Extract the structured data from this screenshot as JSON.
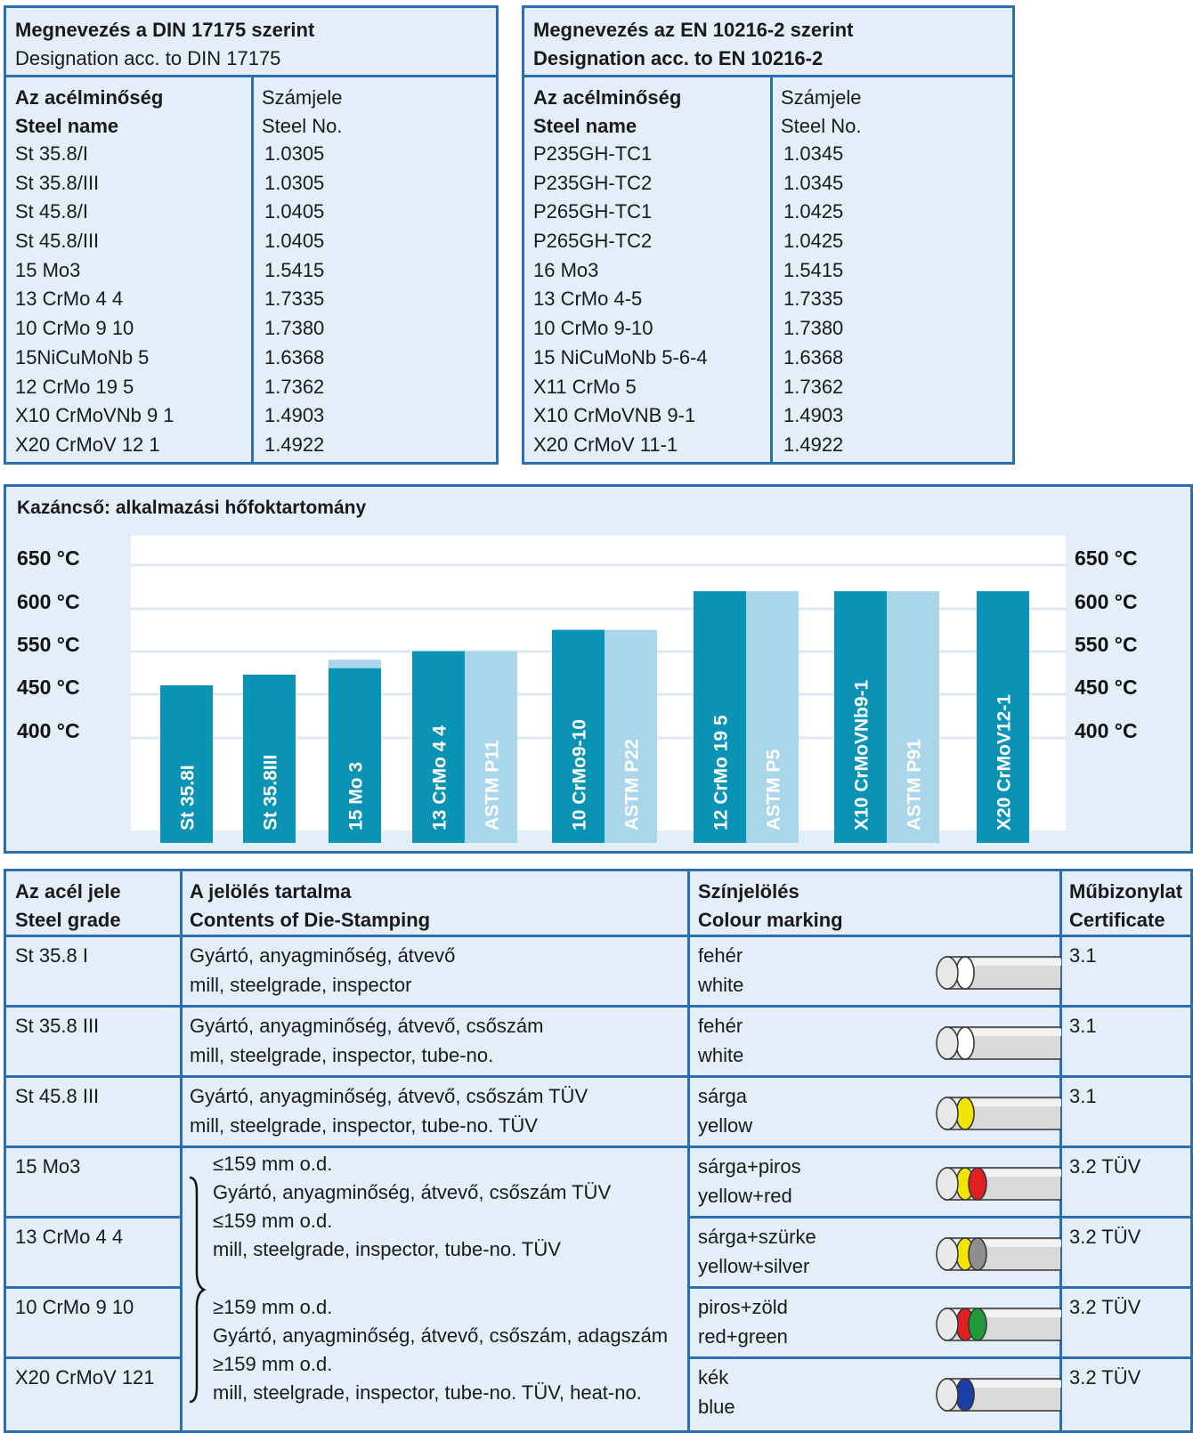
{
  "din_table": {
    "header_line1": "Megnevezés a DIN 17175 szerint",
    "header_line2": "Designation acc. to DIN 17175",
    "col1_head1": "Az acélminőség",
    "col1_head2": "Steel name",
    "col2_head1": "Számjele",
    "col2_head2": "Steel No.",
    "rows": [
      {
        "name": "St 35.8/I",
        "no": "1.0305"
      },
      {
        "name": "St 35.8/III",
        "no": "1.0305"
      },
      {
        "name": "St 45.8/I",
        "no": "1.0405"
      },
      {
        "name": "St 45.8/III",
        "no": "1.0405"
      },
      {
        "name": "15 Mo3",
        "no": "1.5415"
      },
      {
        "name": "13 CrMo 4 4",
        "no": "1.7335"
      },
      {
        "name": "10 CrMo 9 10",
        "no": "1.7380"
      },
      {
        "name": "15NiCuMoNb 5",
        "no": "1.6368"
      },
      {
        "name": "12 CrMo 19 5",
        "no": "1.7362"
      },
      {
        "name": "X10  CrMoVNb 9 1",
        "no": "1.4903"
      },
      {
        "name": "X20 CrMoV 12 1",
        "no": "1.4922"
      }
    ]
  },
  "en_table": {
    "header_line1": "Megnevezés az EN 10216-2 szerint",
    "header_line2": "Designation acc. to EN 10216-2",
    "col1_head1": "Az acélminőség",
    "col1_head2": "Steel name",
    "col2_head1": "Számjele",
    "col2_head2": "Steel No.",
    "rows": [
      {
        "name": "P235GH-TC1",
        "no": "1.0345"
      },
      {
        "name": "P235GH-TC2",
        "no": "1.0345"
      },
      {
        "name": "P265GH-TC1",
        "no": "1.0425"
      },
      {
        "name": "P265GH-TC2",
        "no": "1.0425"
      },
      {
        "name": "16 Mo3",
        "no": "1.5415"
      },
      {
        "name": "13 CrMo 4-5",
        "no": "1.7335"
      },
      {
        "name": "10 CrMo 9-10",
        "no": "1.7380"
      },
      {
        "name": "15 NiCuMoNb 5-6-4",
        "no": "1.6368"
      },
      {
        "name": "X11 CrMo 5",
        "no": "1.7362"
      },
      {
        "name": "X10 CrMoVNB 9-1",
        "no": "1.4903"
      },
      {
        "name": "X20 CrMoV 11-1",
        "no": "1.4922"
      }
    ]
  },
  "chart_data": {
    "type": "bar",
    "title": "Kazáncső:  alkalmazási hőfoktartomány",
    "y_ticks": [
      "650 °C",
      "600 °C",
      "550 °C",
      "450 °C",
      "400 °C"
    ],
    "colors": {
      "din": "#0a93b5",
      "astm": "#a9d6e8",
      "plot_bg": "#ffffff",
      "grid": "#dde8f3"
    },
    "bars": [
      {
        "label": "St 35.8I",
        "value": 450,
        "series": "din"
      },
      {
        "label": "St 35.8III",
        "value": 475,
        "series": "din"
      },
      {
        "label": "15 Mo 3",
        "value": 490,
        "series": "din",
        "extra_light": 510
      },
      {
        "label": "13 CrMo 4 4",
        "value": 530,
        "series": "din"
      },
      {
        "label": "ASTM P11",
        "value": 530,
        "series": "astm"
      },
      {
        "label": "10 CrMo9-10",
        "value": 565,
        "series": "din"
      },
      {
        "label": "ASTM P22",
        "value": 565,
        "series": "astm"
      },
      {
        "label": "12 CrMo 19 5",
        "value": 610,
        "series": "din"
      },
      {
        "label": "ASTM P5",
        "value": 610,
        "series": "astm"
      },
      {
        "label": "X10 CrMoVNb9-1",
        "value": 610,
        "series": "din"
      },
      {
        "label": "ASTM P91",
        "value": 610,
        "series": "astm"
      },
      {
        "label": "X20 CrMoV12-1",
        "value": 610,
        "series": "din"
      }
    ]
  },
  "marking_table": {
    "head": {
      "c1_l1": "Az acél jele",
      "c1_l2": "Steel grade",
      "c2_l1": "A jelölés tartalma",
      "c2_l2": "Contents of Die-Stamping",
      "c3_l1": "Színjelölés",
      "c3_l2": "Colour marking",
      "c4_l1": "Műbizonylat",
      "c4_l2": "Certificate"
    },
    "rows": [
      {
        "grade": "St 35.8 I",
        "c1": "Gyártó, anyagminőség, átvevő",
        "c2": "mill, steelgrade, inspector",
        "col1": "fehér",
        "col2": "white",
        "cert": "3.1",
        "rings": [
          "#ffffff"
        ]
      },
      {
        "grade": "St 35.8 III",
        "c1": "Gyártó, anyagminőség, átvevő, csőszám",
        "c2": "mill, steelgrade, inspector, tube-no.",
        "col1": "fehér",
        "col2": "white",
        "cert": "3.1",
        "rings": [
          "#ffffff"
        ]
      },
      {
        "grade": "St 45.8 III",
        "c1": "Gyártó, anyagminőség, átvevő, csőszám TÜV",
        "c2": "mill, steelgrade, inspector, tube-no. TÜV",
        "col1": "sárga",
        "col2": "yellow",
        "cert": "3.1",
        "rings": [
          "#f2e600"
        ]
      },
      {
        "grade": "15 Mo3",
        "col1": "sárga+piros",
        "col2": "yellow+red",
        "cert": "3.2 TÜV",
        "rings": [
          "#f2e600",
          "#e02020"
        ]
      },
      {
        "grade": "13 CrMo 4 4",
        "col1": "sárga+szürke",
        "col2": "yellow+silver",
        "cert": "3.2 TÜV",
        "rings": [
          "#f2e600",
          "#8f8f8f"
        ]
      },
      {
        "grade": "10 CrMo 9 10",
        "col1": "piros+zöld",
        "col2": "red+green",
        "cert": "3.2 TÜV",
        "rings": [
          "#e02020",
          "#1f9a3a"
        ]
      },
      {
        "grade": "X20 CrMoV 121",
        "col1": "kék",
        "col2": "blue",
        "cert": "3.2 TÜV",
        "rings": [
          "#1a3fa8"
        ]
      }
    ],
    "brace_lines": [
      "≤159 mm o.d.",
      "Gyártó, anyagminőség, átvevő, csőszám TÜV",
      "≤159 mm o.d.",
      "mill, steelgrade, inspector, tube-no. TÜV",
      "≥159 mm o.d.",
      "Gyártó, anyagminőség, átvevő, csőszám, adagszám",
      "≥159 mm o.d.",
      "mill, steelgrade, inspector, tube-no. TÜV, heat-no."
    ]
  }
}
